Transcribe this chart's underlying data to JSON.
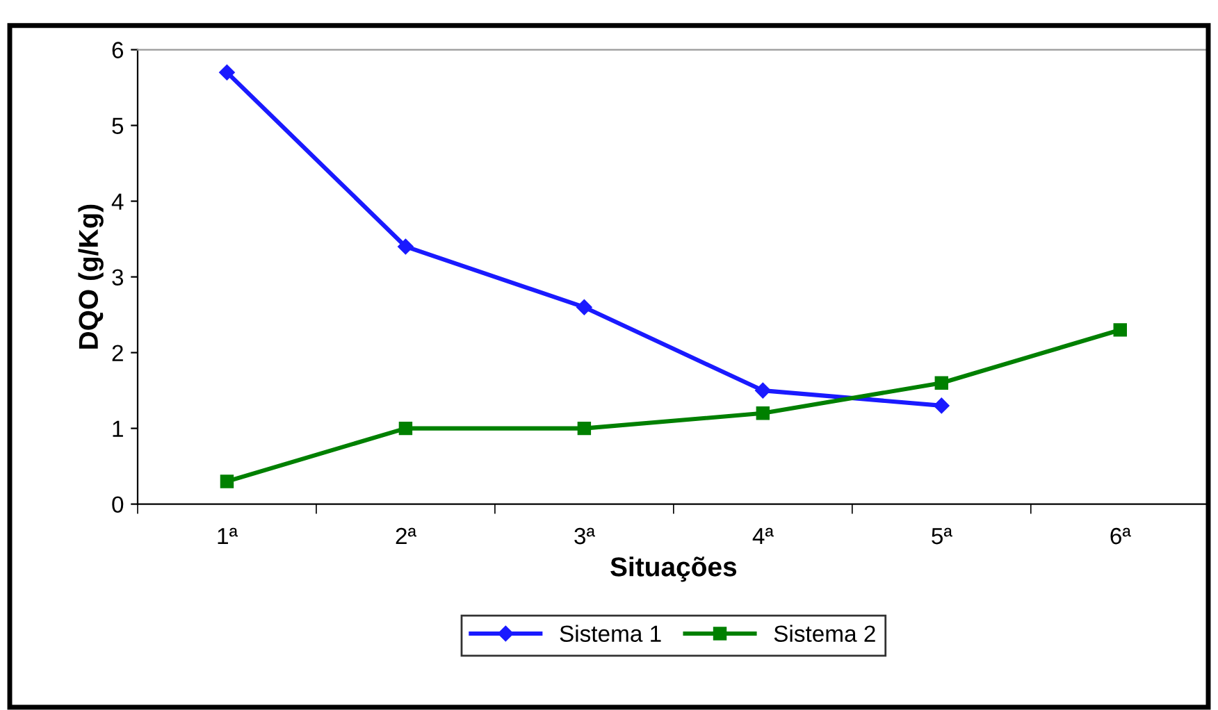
{
  "chart_data": {
    "type": "line",
    "xlabel": "Situações",
    "ylabel": "DQO (g/Kg)",
    "categories": [
      "1ª",
      "2ª",
      "3ª",
      "4ª",
      "5ª",
      "6ª"
    ],
    "series": [
      {
        "name": "Sistema 1",
        "color": "#1a1aff",
        "marker": "diamond",
        "values": [
          5.7,
          3.4,
          2.6,
          1.5,
          1.3,
          null
        ]
      },
      {
        "name": "Sistema 2",
        "color": "#008000",
        "marker": "square",
        "values": [
          0.3,
          1.0,
          1.0,
          1.2,
          1.6,
          2.3
        ]
      }
    ],
    "ylim": [
      0,
      6
    ],
    "yticks": [
      0,
      1,
      2,
      3,
      4,
      5,
      6
    ],
    "grid": false,
    "legend": "bottom",
    "line_style": "solid"
  }
}
